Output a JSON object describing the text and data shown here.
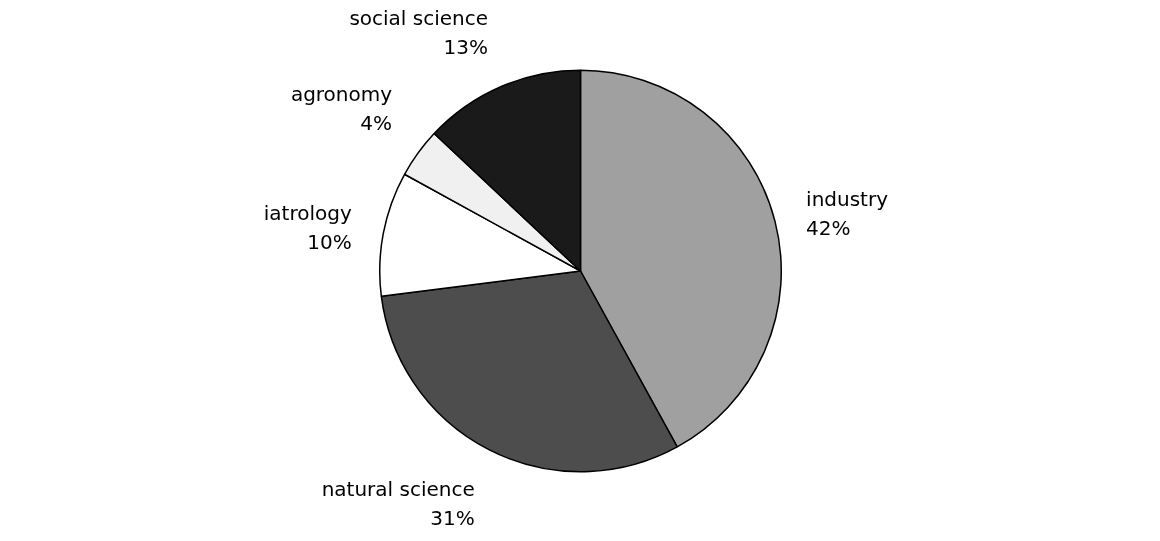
{
  "chart_data": {
    "type": "pie",
    "categories": [
      "industry",
      "natural science",
      "iatrology",
      "agronomy",
      "social science"
    ],
    "values": [
      42,
      31,
      10,
      4,
      13
    ],
    "value_labels": [
      "42%",
      "31%",
      "10%",
      "4%",
      "13%"
    ],
    "colors": [
      "#a0a0a0",
      "#4d4d4d",
      "#ffffff",
      "#f0f0f0",
      "#1a1a1a"
    ]
  }
}
